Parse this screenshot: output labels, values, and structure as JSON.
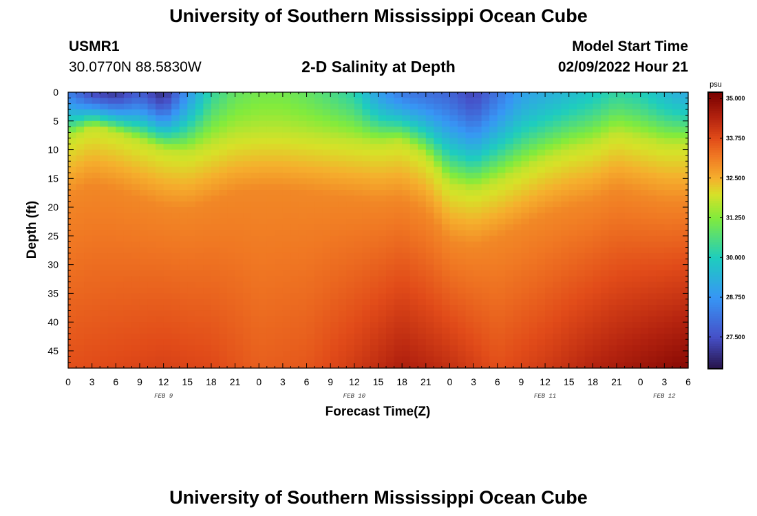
{
  "page": {
    "title_top": "University of Southern Mississippi Ocean Cube",
    "title_bottom": "University of Southern Mississippi Ocean Cube",
    "station_id": "USMR1",
    "station_coords": "30.0770N  88.5830W",
    "plot_title": "2-D Salinity at Depth",
    "model_start_label": "Model Start Time",
    "model_start_value": "02/09/2022 Hour 21"
  },
  "chart_data": {
    "type": "heatmap",
    "title": "2-D Salinity at Depth",
    "xlabel": "Forecast Time(Z)",
    "ylabel": "Depth (ft)",
    "x_hours_range": [
      0,
      78
    ],
    "y_range_ft": [
      0,
      48
    ],
    "x_tick_labels": [
      "0",
      "3",
      "6",
      "9",
      "12",
      "15",
      "18",
      "21",
      "0",
      "3",
      "6",
      "9",
      "12",
      "15",
      "18",
      "21",
      "0",
      "3",
      "6",
      "9",
      "12",
      "15",
      "18",
      "21",
      "0",
      "3",
      "6"
    ],
    "y_tick_labels": [
      "0",
      "5",
      "10",
      "15",
      "20",
      "25",
      "30",
      "35",
      "40",
      "45"
    ],
    "y_tick_values": [
      0,
      5,
      10,
      15,
      20,
      25,
      30,
      35,
      40,
      45
    ],
    "date_labels": [
      {
        "text": "FEB 9",
        "hour": 12
      },
      {
        "text": "FEB 10",
        "hour": 36
      },
      {
        "text": "FEB 11",
        "hour": 60
      },
      {
        "text": "FEB 12",
        "hour": 75
      }
    ],
    "colorbar": {
      "unit": "psu",
      "min": 26.5,
      "max": 35.2,
      "tick_labels": [
        "35.000",
        "33.750",
        "32.500",
        "31.250",
        "30.000",
        "28.750",
        "27.500"
      ],
      "tick_values": [
        35.0,
        33.75,
        32.5,
        31.25,
        30.0,
        28.75,
        27.5
      ]
    },
    "surface_salinity_psu": [
      {
        "hour": 0,
        "value": 28.4
      },
      {
        "hour": 3,
        "value": 27.4
      },
      {
        "hour": 6,
        "value": 27.1
      },
      {
        "hour": 9,
        "value": 27.8
      },
      {
        "hour": 12,
        "value": 26.9
      },
      {
        "hour": 15,
        "value": 28.8
      },
      {
        "hour": 18,
        "value": 30.3
      },
      {
        "hour": 21,
        "value": 30.9
      },
      {
        "hour": 24,
        "value": 31.1
      },
      {
        "hour": 27,
        "value": 31.1
      },
      {
        "hour": 30,
        "value": 30.9
      },
      {
        "hour": 33,
        "value": 30.6
      },
      {
        "hour": 36,
        "value": 30.2
      },
      {
        "hour": 39,
        "value": 29.0
      },
      {
        "hour": 42,
        "value": 28.3
      },
      {
        "hour": 45,
        "value": 28.1
      },
      {
        "hour": 48,
        "value": 27.9
      },
      {
        "hour": 51,
        "value": 27.3
      },
      {
        "hour": 54,
        "value": 28.2
      },
      {
        "hour": 57,
        "value": 29.0
      },
      {
        "hour": 60,
        "value": 29.3
      },
      {
        "hour": 63,
        "value": 29.6
      },
      {
        "hour": 66,
        "value": 29.9
      },
      {
        "hour": 69,
        "value": 30.3
      },
      {
        "hour": 72,
        "value": 30.1
      },
      {
        "hour": 75,
        "value": 29.6
      },
      {
        "hour": 78,
        "value": 29.2
      }
    ],
    "halocline_depth_ft": [
      {
        "hour": 0,
        "value": 8.0
      },
      {
        "hour": 3,
        "value": 6.0
      },
      {
        "hour": 6,
        "value": 7.0
      },
      {
        "hour": 9,
        "value": 8.5
      },
      {
        "hour": 12,
        "value": 10.0
      },
      {
        "hour": 15,
        "value": 10.5
      },
      {
        "hour": 18,
        "value": 9.0
      },
      {
        "hour": 21,
        "value": 7.5
      },
      {
        "hour": 24,
        "value": 7.0
      },
      {
        "hour": 27,
        "value": 7.0
      },
      {
        "hour": 30,
        "value": 7.5
      },
      {
        "hour": 33,
        "value": 8.0
      },
      {
        "hour": 36,
        "value": 8.5
      },
      {
        "hour": 39,
        "value": 9.0
      },
      {
        "hour": 42,
        "value": 8.5
      },
      {
        "hour": 45,
        "value": 11.0
      },
      {
        "hour": 48,
        "value": 16.0
      },
      {
        "hour": 51,
        "value": 17.0
      },
      {
        "hour": 54,
        "value": 15.5
      },
      {
        "hour": 57,
        "value": 13.5
      },
      {
        "hour": 60,
        "value": 11.5
      },
      {
        "hour": 63,
        "value": 10.0
      },
      {
        "hour": 66,
        "value": 9.0
      },
      {
        "hour": 69,
        "value": 7.0
      },
      {
        "hour": 72,
        "value": 8.0
      },
      {
        "hour": 75,
        "value": 9.0
      },
      {
        "hour": 78,
        "value": 9.0
      }
    ],
    "bottom_salinity_psu": [
      {
        "hour": 0,
        "value": 33.7
      },
      {
        "hour": 6,
        "value": 33.8
      },
      {
        "hour": 12,
        "value": 33.9
      },
      {
        "hour": 18,
        "value": 33.8
      },
      {
        "hour": 24,
        "value": 33.5
      },
      {
        "hour": 30,
        "value": 33.6
      },
      {
        "hour": 36,
        "value": 34.0
      },
      {
        "hour": 42,
        "value": 34.5
      },
      {
        "hour": 48,
        "value": 34.2
      },
      {
        "hour": 54,
        "value": 33.7
      },
      {
        "hour": 60,
        "value": 34.0
      },
      {
        "hour": 66,
        "value": 34.4
      },
      {
        "hour": 72,
        "value": 34.7
      },
      {
        "hour": 78,
        "value": 35.0
      }
    ]
  }
}
